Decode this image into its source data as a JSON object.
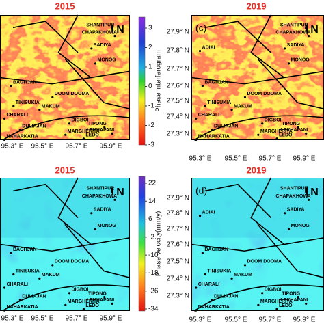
{
  "panels": [
    {
      "title": "2015",
      "label": null,
      "xticks": [
        "95.3° E",
        "95.5° E",
        "95.7° E",
        "95.9° E"
      ],
      "yticks": [],
      "places": [
        "SHANTIPUR",
        "CHAPAKHOWA",
        "SADIYA",
        "MONOG",
        "BAGHJAN",
        "DOOM DOOMA",
        "TINISUKIA",
        "MAKUM",
        "CHARALI",
        "DIGBOI",
        "TIPONG",
        "LEKHAPANI",
        "MARGHERITA",
        "LEDO",
        "DULIAJAN",
        "NAHARKATIA"
      ],
      "north": "N"
    },
    {
      "title": "2019",
      "label": "(c)",
      "xticks": [
        "95.3° E",
        "95.5° E",
        "95.7° E",
        "95.9° E"
      ],
      "yticks": [
        "27.9° N",
        "27.8° N",
        "27.7° N",
        "27.6° N",
        "27.5° N",
        "27.4° N",
        "27.3° N"
      ],
      "places": [
        "SHANTIPUR",
        "CHAPAKHOWA",
        "SADIYA",
        "MONOG",
        "BAGHJAN",
        "DOOM DOOMA",
        "TINISUKIA",
        "MAKUM",
        "CHARALI",
        "DIGBOI",
        "TIPONG",
        "LEKHAPANI",
        "MARGHERITA",
        "LEDO",
        "DULIAJAN",
        "NAHARKATIA",
        "ADIAI"
      ],
      "north": "N"
    },
    {
      "title": "2015",
      "label": null,
      "xticks": [
        "95.3° E",
        "95.5° E",
        "95.7° E",
        "95.9° E"
      ],
      "yticks": [],
      "places": [
        "SHANTIPUR",
        "CHAPAKHOWA",
        "SADIYA",
        "MONOG",
        "BAGHJAN",
        "DOOM DOOMA",
        "TINISUKIA",
        "MAKUM",
        "CHARALI",
        "DIGBOI",
        "TIPONG",
        "LEKHAPANI",
        "MARGHERITA",
        "LEDO",
        "DULIAJAN",
        "NAHARKATIA"
      ],
      "north": "N"
    },
    {
      "title": "2019",
      "label": "(d)",
      "xticks": [
        "95.3° E",
        "95.5° E",
        "95.7° E",
        "95.9° E"
      ],
      "yticks": [
        "27.9° N",
        "27.8° N",
        "27.7° N",
        "27.6° N",
        "27.5° N",
        "27.4° N",
        "27.3° N"
      ],
      "places": [
        "SHANTIPUR",
        "CHAPAKHOWA",
        "SADIYA",
        "MONOG",
        "BAGHJAN",
        "DOOM DOOMA",
        "TINISUKIA",
        "MAKUM",
        "CHARALI",
        "DIGBOI",
        "TIPONG",
        "LEKHAPANI",
        "MARGHERITA",
        "LEDO",
        "DULIAJAN",
        "NAHARKATIA",
        "ADIAI"
      ],
      "north": "N"
    }
  ],
  "colorbars": [
    {
      "label": "Phase interferogram",
      "ticks": [
        3,
        2,
        1,
        0,
        -1,
        -2,
        -3
      ]
    },
    {
      "label": "Phase velocity(mm/y)",
      "ticks": [
        22,
        14,
        6,
        -2,
        -10,
        -18,
        -26,
        -34
      ]
    }
  ]
}
